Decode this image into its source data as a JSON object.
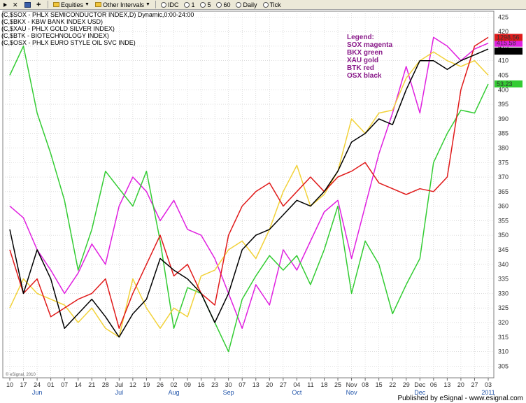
{
  "toolbar": {
    "items": [
      {
        "label": "",
        "icon": "arrow-icon"
      },
      {
        "label": "",
        "icon": "close-icon"
      },
      {
        "label": "",
        "icon": "save-icon"
      },
      {
        "label": "",
        "icon": "add-icon"
      },
      {
        "label": "Equities",
        "icon": "folder-icon"
      },
      {
        "label": "Other Intervals",
        "icon": "folder-icon"
      },
      {
        "label": "IDC",
        "icon": "clock-icon"
      },
      {
        "label": "1",
        "icon": "clock-icon"
      },
      {
        "label": "5",
        "icon": "clock-icon"
      },
      {
        "label": "60",
        "icon": "clock-icon"
      },
      {
        "label": "Daily",
        "icon": "clock-icon"
      },
      {
        "label": "Tick",
        "icon": "clock-icon"
      }
    ]
  },
  "header_lines": [
    "(C,$SOX - PHLX SEMICONDUCTOR INDEX,D) Dynamic,0:00-24:00",
    "(C,$BKX - KBW BANK INDEX USD)",
    "(C,$XAU - PHLX GOLD SILVER INDEX)",
    "(C,$BTK - BIOTECHNOLOGY INDEX)",
    "(C,$OSX - PHLX EURO STYLE OIL SVC INDE)"
  ],
  "legend": [
    "Legend:",
    "SOX magenta",
    "BKX green",
    "XAU gold",
    "BTK red",
    "OSX black"
  ],
  "watermark": "© eSignal, 2010",
  "footer": "Published by eSignal - www.esignal.com",
  "colors": {
    "sox": "#e020e0",
    "bkx": "#33cc33",
    "xau": "#f2d23a",
    "btk": "#e01a1a",
    "osx": "#000000",
    "grid": "#c8c8c8",
    "month_label": "#2255aa"
  },
  "chart_data": {
    "type": "line",
    "x_labels": [
      "10",
      "17",
      "24",
      "01",
      "07",
      "14",
      "21",
      "28",
      "Jul",
      "12",
      "19",
      "26",
      "02",
      "09",
      "16",
      "23",
      "30",
      "07",
      "13",
      "20",
      "27",
      "04",
      "11",
      "18",
      "25",
      "Nov",
      "08",
      "15",
      "22",
      "29",
      "Dec",
      "06",
      "13",
      "20",
      "27",
      "03"
    ],
    "x_month_labels": [
      "Jun",
      "Jul",
      "Aug",
      "Sep",
      "Oct",
      "Nov",
      "Dec",
      "2011"
    ],
    "y_ticks": [
      305,
      310,
      315,
      320,
      325,
      330,
      335,
      340,
      345,
      350,
      355,
      360,
      365,
      370,
      375,
      380,
      385,
      390,
      395,
      400,
      405,
      410,
      415,
      420,
      425
    ],
    "ylim": [
      301,
      427
    ],
    "grid": true,
    "value_tags": [
      {
        "series": "SOX",
        "text": "415.58",
        "color": "#e020e0"
      },
      {
        "series": "BTK",
        "text": "1298.56",
        "color": "#e01a1a"
      },
      {
        "series": "OSX",
        "text": "",
        "color": "#000000"
      },
      {
        "series": "BKX",
        "text": "53.23",
        "color": "#33cc33"
      }
    ],
    "series": [
      {
        "name": "SOX",
        "color": "#e020e0",
        "values": [
          360,
          356,
          345,
          338,
          330,
          337,
          347,
          340,
          360,
          370,
          365,
          355,
          362,
          352,
          350,
          342,
          330,
          318,
          333,
          326,
          345,
          338,
          348,
          358,
          362,
          342,
          360,
          378,
          392,
          408,
          392,
          418,
          415,
          410,
          414,
          416
        ]
      },
      {
        "name": "BKX",
        "color": "#33cc33",
        "values": [
          405,
          415,
          392,
          378,
          362,
          338,
          352,
          372,
          366,
          360,
          372,
          348,
          318,
          332,
          330,
          320,
          310,
          328,
          336,
          343,
          338,
          343,
          333,
          345,
          360,
          330,
          348,
          340,
          323,
          333,
          342,
          375,
          385,
          393,
          392,
          402
        ]
      },
      {
        "name": "XAU",
        "color": "#f2d23a",
        "values": [
          325,
          335,
          330,
          328,
          326,
          320,
          325,
          318,
          315,
          335,
          325,
          318,
          325,
          322,
          336,
          338,
          345,
          348,
          342,
          352,
          365,
          374,
          360,
          364,
          372,
          390,
          385,
          392,
          393,
          404,
          410,
          413,
          410,
          408,
          410,
          405
        ]
      },
      {
        "name": "BTK",
        "color": "#e01a1a",
        "values": [
          345,
          330,
          335,
          322,
          325,
          328,
          330,
          335,
          318,
          330,
          340,
          350,
          336,
          340,
          330,
          326,
          350,
          360,
          365,
          368,
          360,
          365,
          370,
          365,
          370,
          372,
          375,
          368,
          366,
          364,
          366,
          365,
          370,
          400,
          415,
          418
        ]
      },
      {
        "name": "OSX",
        "color": "#000000",
        "values": [
          352,
          330,
          345,
          335,
          318,
          323,
          328,
          322,
          315,
          323,
          328,
          342,
          338,
          335,
          330,
          320,
          330,
          345,
          350,
          352,
          357,
          362,
          360,
          365,
          372,
          382,
          385,
          390,
          388,
          400,
          410,
          410,
          407,
          410,
          412,
          414
        ]
      }
    ]
  }
}
